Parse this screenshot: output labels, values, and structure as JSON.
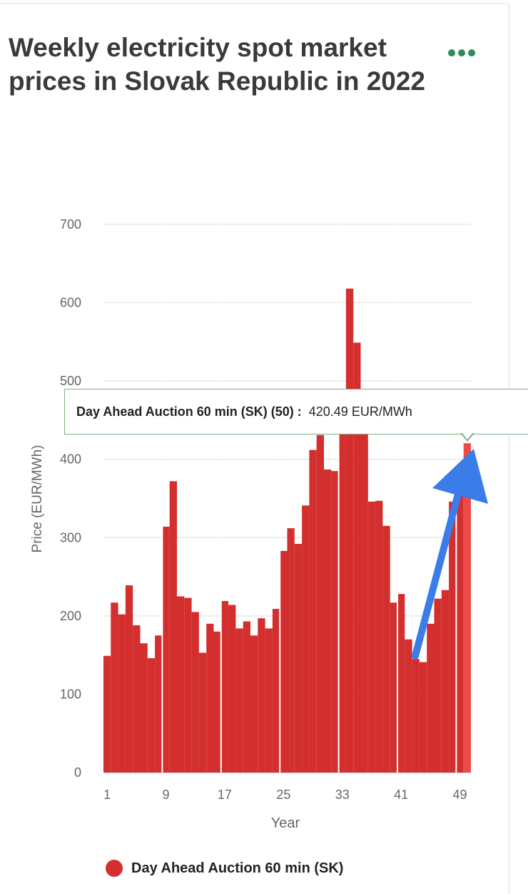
{
  "header": {
    "title": "Weekly electricity spot market prices in Slovak Republic in 2022",
    "menu_icon": "more-horizontal-icon"
  },
  "tooltip": {
    "series": "Day Ahead Auction 60 min (SK)",
    "week": "(50)",
    "separator": " : ",
    "value": "420.49 EUR/MWh"
  },
  "annotation": {
    "arrow_color": "#3a7de8",
    "arrow": "arrow-pointer-icon"
  },
  "legend": {
    "label": "Day Ahead Auction 60 min (SK)",
    "color": "#d32f2f"
  },
  "chart_data": {
    "type": "bar",
    "title": "Weekly electricity spot market prices in Slovak Republic in 2022",
    "xlabel": "Year",
    "ylabel": "Price (EUR/MWh)",
    "ylim": [
      0,
      700
    ],
    "yticks": [
      0,
      100,
      200,
      300,
      400,
      500,
      600,
      700
    ],
    "xtick_labels": [
      "1",
      "9",
      "17",
      "25",
      "33",
      "41",
      "49"
    ],
    "highlighted_week": 50,
    "bar_color": "#d32f2f",
    "highlight_color": "#ef4a4a",
    "series": [
      {
        "name": "Day Ahead Auction 60 min (SK)",
        "categories": [
          1,
          2,
          3,
          4,
          5,
          6,
          7,
          8,
          9,
          10,
          11,
          12,
          13,
          14,
          15,
          16,
          17,
          18,
          19,
          20,
          21,
          22,
          23,
          24,
          25,
          26,
          27,
          28,
          29,
          30,
          31,
          32,
          33,
          34,
          35,
          36,
          37,
          38,
          39,
          40,
          41,
          42,
          43,
          44,
          45,
          46,
          47,
          48,
          49,
          50
        ],
        "values": [
          149,
          217,
          202,
          239,
          188,
          165,
          146,
          175,
          314,
          372,
          225,
          223,
          205,
          153,
          190,
          180,
          219,
          214,
          184,
          193,
          175,
          197,
          184,
          209,
          283,
          312,
          292,
          341,
          412,
          431,
          387,
          385,
          486,
          618,
          549,
          445,
          346,
          347,
          315,
          217,
          228,
          170,
          145,
          141,
          190,
          222,
          233,
          346,
          384,
          420.49
        ]
      }
    ]
  }
}
